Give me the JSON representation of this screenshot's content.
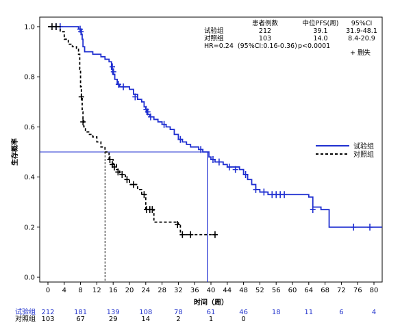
{
  "chart_data": {
    "type": "line",
    "title": "",
    "xlabel": "时间（周）",
    "ylabel": "生存概率",
    "xlim": [
      0,
      82
    ],
    "ylim": [
      0,
      1.0
    ],
    "xticks": [
      0,
      4,
      8,
      12,
      16,
      20,
      24,
      28,
      32,
      36,
      40,
      44,
      48,
      52,
      56,
      60,
      64,
      68,
      72,
      76,
      80
    ],
    "yticks": [
      "0.0",
      "0.2",
      "0.4",
      "0.6",
      "0.8",
      "1.0"
    ],
    "grid": false,
    "stats": {
      "header": [
        "患者例数",
        "中位PFS(周)",
        "95%CI"
      ],
      "rows": [
        {
          "label": "试验组",
          "n": "212",
          "median": "39.1",
          "ci": "31.9-48.1"
        },
        {
          "label": "对照组",
          "n": "103",
          "median": "14.0",
          "ci": "8.4-20.9"
        }
      ],
      "hr_text": "HR=0.24  (95%CI:0.16-0.36)",
      "p_text": "p<0.0001",
      "censor_label": "+ 删失"
    },
    "series": [
      {
        "name": "试验组",
        "color": "#1f2fd0",
        "style": "solid",
        "steps": [
          [
            0,
            1.0
          ],
          [
            7.5,
            0.99
          ],
          [
            8.2,
            0.97
          ],
          [
            8.4,
            0.95
          ],
          [
            8.6,
            0.92
          ],
          [
            9.0,
            0.9
          ],
          [
            11,
            0.89
          ],
          [
            13,
            0.88
          ],
          [
            14,
            0.87
          ],
          [
            15,
            0.86
          ],
          [
            15.6,
            0.83
          ],
          [
            15.9,
            0.81
          ],
          [
            16.4,
            0.79
          ],
          [
            17,
            0.77
          ],
          [
            17.6,
            0.76
          ],
          [
            20,
            0.75
          ],
          [
            21,
            0.73
          ],
          [
            22,
            0.71
          ],
          [
            23,
            0.7
          ],
          [
            23.6,
            0.68
          ],
          [
            24,
            0.67
          ],
          [
            24.3,
            0.65
          ],
          [
            25,
            0.64
          ],
          [
            26,
            0.63
          ],
          [
            27,
            0.62
          ],
          [
            28,
            0.61
          ],
          [
            29,
            0.6
          ],
          [
            30,
            0.59
          ],
          [
            31,
            0.57
          ],
          [
            32,
            0.55
          ],
          [
            33,
            0.54
          ],
          [
            34,
            0.53
          ],
          [
            35,
            0.52
          ],
          [
            37,
            0.51
          ],
          [
            38,
            0.5
          ],
          [
            39.5,
            0.48
          ],
          [
            40,
            0.47
          ],
          [
            41,
            0.46
          ],
          [
            43,
            0.45
          ],
          [
            44,
            0.44
          ],
          [
            47,
            0.43
          ],
          [
            48,
            0.41
          ],
          [
            49,
            0.39
          ],
          [
            50,
            0.37
          ],
          [
            51,
            0.35
          ],
          [
            52,
            0.34
          ],
          [
            54,
            0.33
          ],
          [
            64,
            0.32
          ],
          [
            65,
            0.28
          ],
          [
            67,
            0.27
          ],
          [
            69,
            0.2
          ],
          [
            82,
            0.2
          ]
        ],
        "censored": [
          [
            2,
            1.0
          ],
          [
            3,
            1.0
          ],
          [
            7.9,
            0.99
          ],
          [
            8.1,
            0.98
          ],
          [
            15.8,
            0.84
          ],
          [
            16.1,
            0.82
          ],
          [
            17.3,
            0.77
          ],
          [
            18.5,
            0.76
          ],
          [
            21.4,
            0.72
          ],
          [
            24.1,
            0.67
          ],
          [
            24.5,
            0.66
          ],
          [
            25.2,
            0.64
          ],
          [
            28.5,
            0.61
          ],
          [
            32.5,
            0.55
          ],
          [
            37.5,
            0.51
          ],
          [
            40.5,
            0.47
          ],
          [
            42,
            0.46
          ],
          [
            44.5,
            0.44
          ],
          [
            46,
            0.43
          ],
          [
            48.5,
            0.41
          ],
          [
            51,
            0.35
          ],
          [
            53,
            0.34
          ],
          [
            55,
            0.33
          ],
          [
            56,
            0.33
          ],
          [
            57,
            0.33
          ],
          [
            58,
            0.33
          ],
          [
            65,
            0.27
          ],
          [
            75,
            0.2
          ],
          [
            79,
            0.2
          ]
        ]
      },
      {
        "name": "对照组",
        "color": "#000000",
        "style": "dashed",
        "steps": [
          [
            0,
            1.0
          ],
          [
            3,
            0.98
          ],
          [
            4,
            0.95
          ],
          [
            5,
            0.93
          ],
          [
            6,
            0.92
          ],
          [
            7,
            0.91
          ],
          [
            7.5,
            0.89
          ],
          [
            7.8,
            0.83
          ],
          [
            8.0,
            0.76
          ],
          [
            8.2,
            0.72
          ],
          [
            8.4,
            0.66
          ],
          [
            8.6,
            0.63
          ],
          [
            8.8,
            0.6
          ],
          [
            9.2,
            0.58
          ],
          [
            10,
            0.57
          ],
          [
            11,
            0.56
          ],
          [
            12,
            0.54
          ],
          [
            13,
            0.52
          ],
          [
            14,
            0.5
          ],
          [
            15,
            0.47
          ],
          [
            16,
            0.45
          ],
          [
            16.8,
            0.43
          ],
          [
            17.6,
            0.41
          ],
          [
            19,
            0.39
          ],
          [
            20,
            0.37
          ],
          [
            22,
            0.35
          ],
          [
            23,
            0.33
          ],
          [
            24,
            0.27
          ],
          [
            26,
            0.22
          ],
          [
            32,
            0.21
          ],
          [
            32.5,
            0.17
          ],
          [
            41,
            0.17
          ]
        ],
        "censored": [
          [
            1,
            1.0
          ],
          [
            2,
            1.0
          ],
          [
            8.2,
            0.72
          ],
          [
            8.6,
            0.62
          ],
          [
            15.2,
            0.47
          ],
          [
            15.8,
            0.45
          ],
          [
            16.3,
            0.44
          ],
          [
            17.2,
            0.42
          ],
          [
            18.2,
            0.41
          ],
          [
            19.4,
            0.39
          ],
          [
            21,
            0.37
          ],
          [
            23.6,
            0.33
          ],
          [
            24.2,
            0.27
          ],
          [
            25,
            0.27
          ],
          [
            25.6,
            0.27
          ],
          [
            31.8,
            0.21
          ],
          [
            33,
            0.17
          ],
          [
            35,
            0.17
          ],
          [
            41,
            0.17
          ]
        ]
      }
    ],
    "median_lines": {
      "level": 0.5,
      "medians": [
        39.1,
        14.0
      ]
    },
    "legend": {
      "position": "right",
      "entries": [
        "试验组",
        "对照组"
      ]
    },
    "risk_table": {
      "times": [
        0,
        8,
        16,
        24,
        32,
        40,
        48,
        56,
        64,
        72,
        80
      ],
      "rows": [
        {
          "label": "试验组",
          "color": "#2233cc",
          "values": [
            "212",
            "181",
            "139",
            "108",
            "78",
            "61",
            "46",
            "18",
            "11",
            "6",
            "4"
          ]
        },
        {
          "label": "对照组",
          "color": "#000000",
          "values": [
            "103",
            "67",
            "29",
            "14",
            "2",
            "1",
            "0",
            "",
            "",
            "",
            ""
          ]
        }
      ]
    }
  }
}
